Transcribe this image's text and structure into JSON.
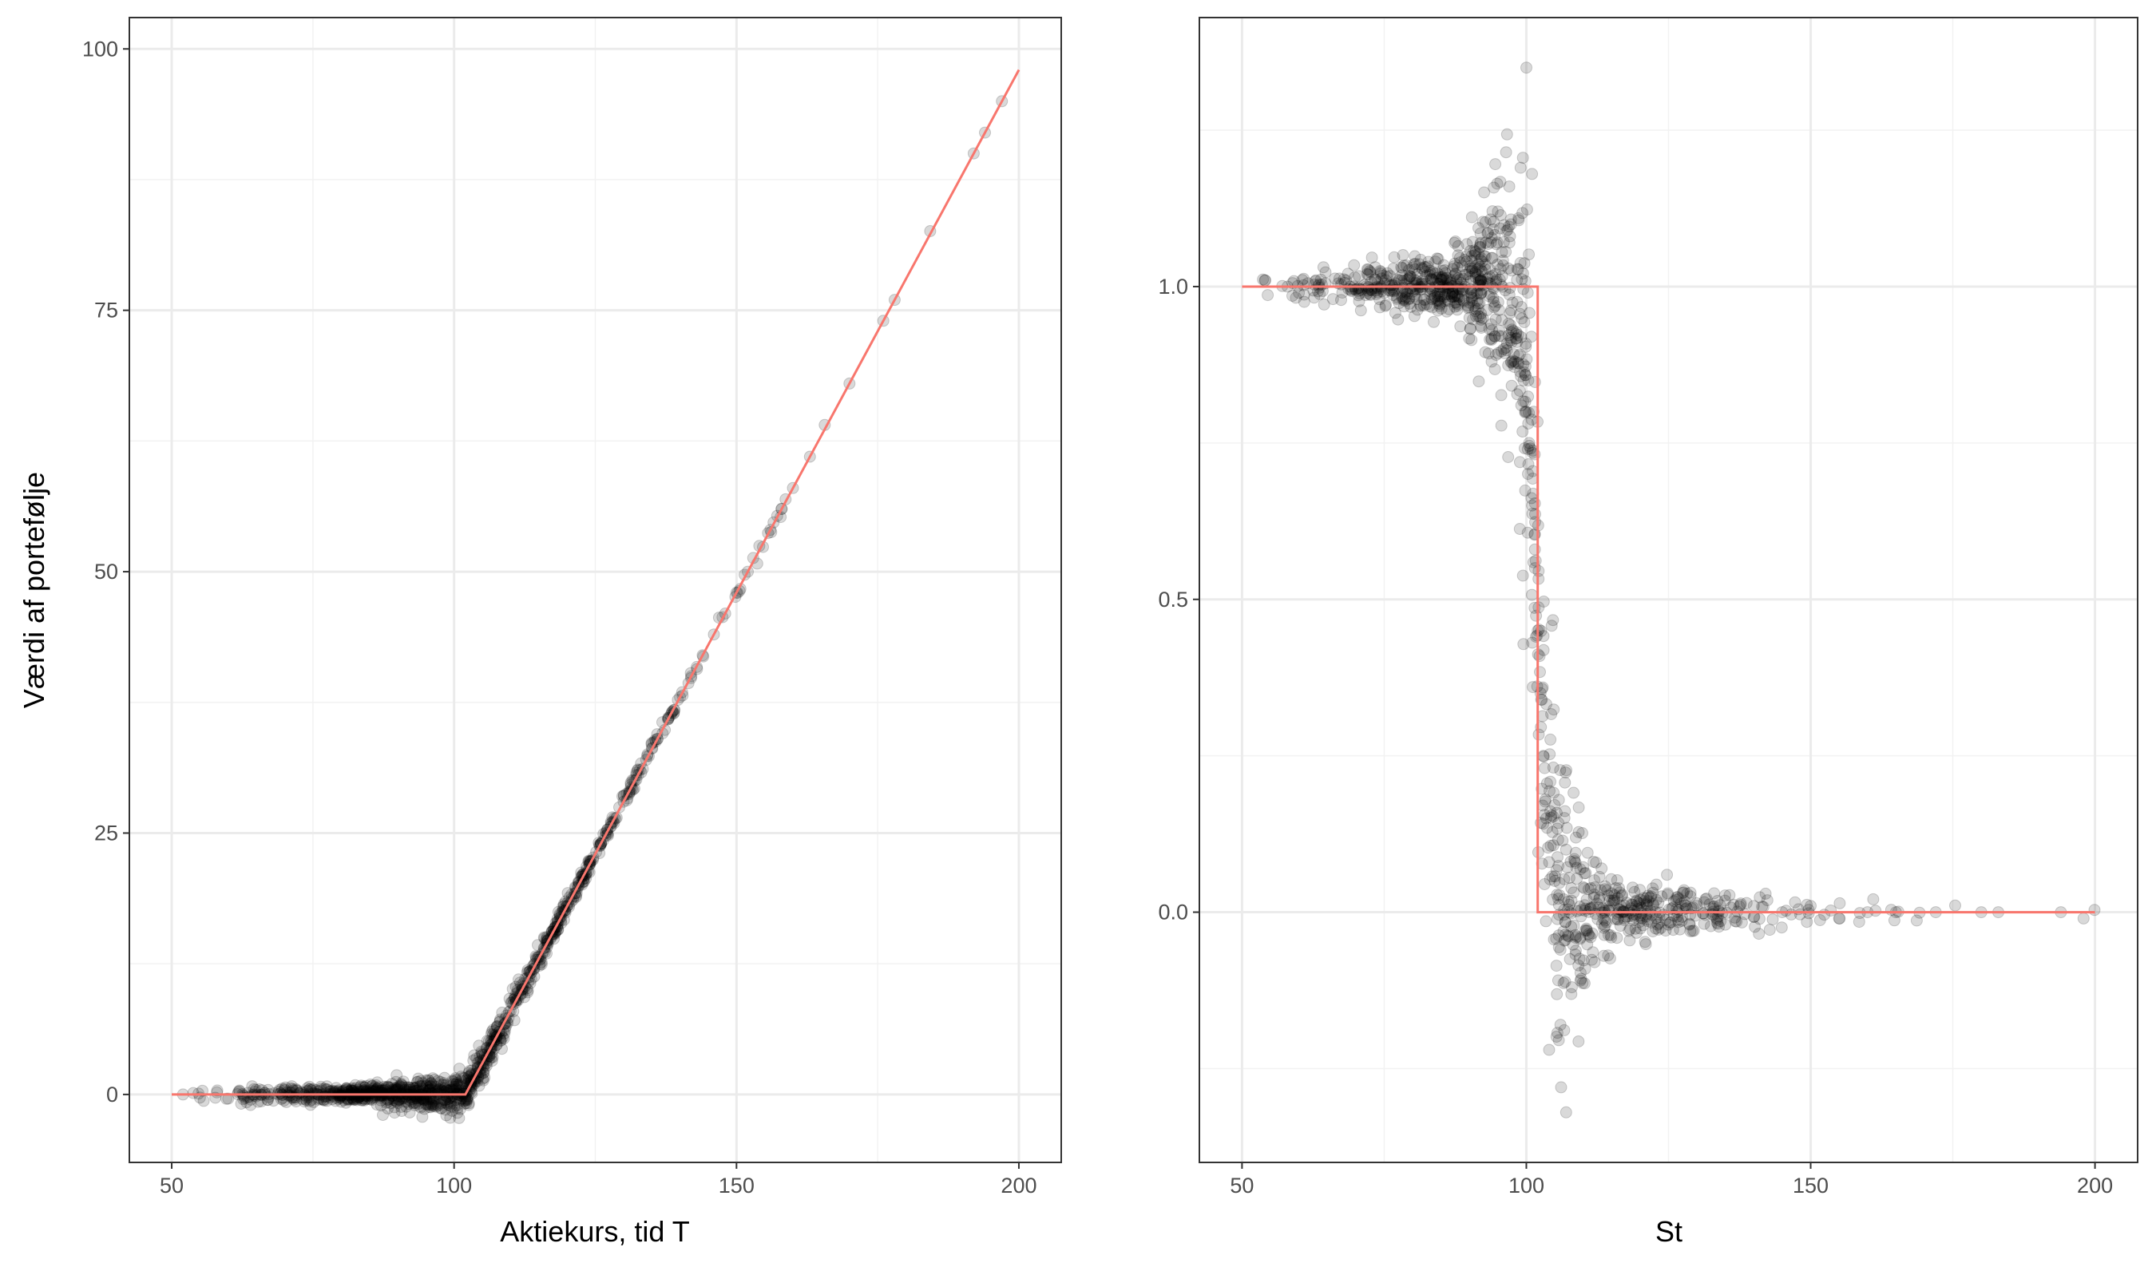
{
  "chart_data": [
    {
      "type": "scatter",
      "title": "",
      "xlabel": "Aktiekurs, tid T",
      "ylabel": "Værdi af portefølje",
      "xlim": [
        42.5,
        207.5
      ],
      "ylim": [
        -6.5,
        103
      ],
      "xticks": [
        50,
        100,
        150,
        200
      ],
      "xtick_labels": [
        "50",
        "100",
        "150",
        "200"
      ],
      "yticks": [
        0,
        25,
        50,
        75,
        100
      ],
      "ytick_labels": [
        "0",
        "25",
        "50",
        "75",
        "100"
      ],
      "grid": true,
      "points_color": "#000000",
      "points_opacity": 0.15,
      "line_color": "#F8766D",
      "line": {
        "x": [
          50,
          102,
          200
        ],
        "y": [
          0,
          0,
          98
        ]
      },
      "points_sample": {
        "x": [
          52,
          55,
          58,
          60,
          62,
          64,
          66,
          68,
          70,
          72,
          74,
          76,
          78,
          80,
          82,
          84,
          86,
          88,
          90,
          92,
          94,
          96,
          98,
          100,
          101,
          102,
          103,
          104,
          105,
          106,
          107,
          108,
          110,
          112,
          114,
          116,
          118,
          120,
          122,
          124,
          126,
          128,
          130,
          132,
          134,
          136,
          138,
          140,
          142,
          144,
          146,
          148,
          150,
          152,
          156,
          158,
          160,
          163,
          170,
          176,
          178,
          192,
          194,
          197
        ],
        "y": [
          0.0,
          -0.3,
          0.2,
          -0.4,
          0.3,
          -0.5,
          0.4,
          -0.6,
          0.5,
          -0.3,
          0.6,
          -0.5,
          0.3,
          -0.7,
          0.6,
          -0.4,
          0.7,
          -0.8,
          0.5,
          -0.9,
          0.8,
          -1.0,
          0.6,
          -1.2,
          0.8,
          0.5,
          1.2,
          2.0,
          3.0,
          4.0,
          5.0,
          6.0,
          8.0,
          10.0,
          12.0,
          14.0,
          16.0,
          18.0,
          20.0,
          22.0,
          24.0,
          26.0,
          28.0,
          30.0,
          32.0,
          34.0,
          36.0,
          38.0,
          40.0,
          42.0,
          44.0,
          46.0,
          48.0,
          50.0,
          54.0,
          56.0,
          58.0,
          61.0,
          68.0,
          74.0,
          76.0,
          90.0,
          92.0,
          95.0
        ]
      }
    },
    {
      "type": "scatter",
      "title": "",
      "xlabel": "St",
      "ylabel": "",
      "xlim": [
        42.5,
        207.5
      ],
      "ylim": [
        -0.4,
        1.43
      ],
      "xticks": [
        50,
        100,
        150,
        200
      ],
      "xtick_labels": [
        "50",
        "100",
        "150",
        "200"
      ],
      "yticks": [
        0,
        0.5,
        1
      ],
      "ytick_labels": [
        "0.0",
        "0.5",
        "1.0"
      ],
      "grid": true,
      "points_color": "#000000",
      "points_opacity": 0.15,
      "line_color": "#F8766D",
      "line": {
        "x": [
          50,
          102,
          102,
          200
        ],
        "y": [
          1,
          1,
          0,
          0
        ]
      },
      "points_sample": {
        "x": [
          54,
          58,
          60,
          63,
          66,
          69,
          72,
          75,
          78,
          80,
          82,
          84,
          86,
          88,
          90,
          92,
          94,
          95,
          96,
          97,
          98,
          99,
          99.5,
          100,
          100.5,
          101,
          101.5,
          102,
          102.5,
          103,
          103.5,
          104,
          105,
          106,
          107,
          108,
          110,
          112,
          115,
          118,
          120,
          125,
          130,
          135,
          140,
          145,
          150,
          155,
          160,
          165,
          172,
          180,
          183,
          194,
          198,
          104,
          106,
          107,
          100,
          101
        ],
        "y": [
          1.01,
          1.0,
          0.99,
          1.01,
          0.98,
          1.0,
          1.02,
          0.99,
          1.01,
          1.03,
          0.97,
          1.04,
          0.96,
          1.05,
          0.95,
          1.07,
          0.93,
          1.12,
          0.9,
          1.16,
          0.88,
          1.19,
          0.85,
          0.8,
          0.75,
          0.65,
          0.55,
          0.45,
          0.35,
          0.25,
          0.15,
          0.08,
          0.05,
          -0.06,
          0.1,
          -0.12,
          0.04,
          -0.08,
          0.03,
          -0.03,
          0.02,
          -0.02,
          0.01,
          -0.02,
          0.01,
          0.0,
          0.01,
          -0.01,
          0.0,
          0.0,
          0.0,
          0.0,
          0.0,
          0.0,
          -0.01,
          -0.22,
          -0.18,
          -0.32,
          1.35,
          1.18
        ]
      }
    }
  ]
}
